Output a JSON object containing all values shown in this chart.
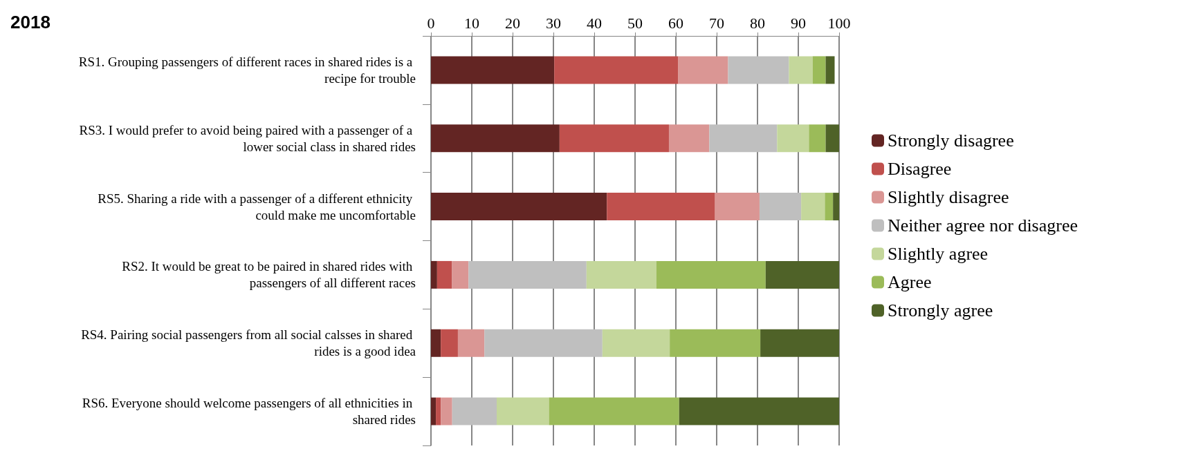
{
  "chart_data": {
    "type": "bar",
    "orientation": "horizontal",
    "stacked": true,
    "title": "2018",
    "categories": [
      "RS1. Grouping passengers of different races in shared rides is a recipe for trouble",
      "RS3. I would prefer to avoid being paired with a passenger of a lower social class in shared rides",
      "RS5. Sharing a ride with a passenger of a different ethnicity could make me uncomfortable",
      "RS2. It would be great to be paired in shared rides with passengers of all different races",
      "RS4. Pairing social passengers from all social calsses in shared rides is a good idea",
      "RS6. Everyone should welcome passengers of all ethnicities in shared rides"
    ],
    "series": [
      {
        "name": "Strongly disagree",
        "color": "#632523",
        "values": [
          30.2,
          31.5,
          43.1,
          1.5,
          2.4,
          1.2
        ]
      },
      {
        "name": "Disagree",
        "color": "#c0504d",
        "values": [
          30.4,
          26.8,
          26.5,
          3.6,
          4.2,
          1.2
        ]
      },
      {
        "name": "Slightly disagree",
        "color": "#da9694",
        "values": [
          12.2,
          9.9,
          10.9,
          4.1,
          6.5,
          2.8
        ]
      },
      {
        "name": "Neither agree nor disagree",
        "color": "#bfbfbf",
        "values": [
          14.9,
          16.6,
          10.2,
          28.9,
          28.9,
          10.9
        ]
      },
      {
        "name": "Slightly agree",
        "color": "#c4d79b",
        "values": [
          5.8,
          7.8,
          5.8,
          17.1,
          16.5,
          12.8
        ]
      },
      {
        "name": "Agree",
        "color": "#9bbb59",
        "values": [
          3.2,
          4.1,
          2.0,
          26.8,
          22.2,
          31.9
        ]
      },
      {
        "name": "Strongly agree",
        "color": "#4f6228",
        "values": [
          2.2,
          3.3,
          1.5,
          18.0,
          19.3,
          39.2
        ]
      }
    ],
    "xlim": [
      0,
      100
    ],
    "xticks": [
      0,
      10,
      20,
      30,
      40,
      50,
      60,
      70,
      80,
      90,
      100
    ],
    "grid": "x",
    "legend": "right"
  }
}
